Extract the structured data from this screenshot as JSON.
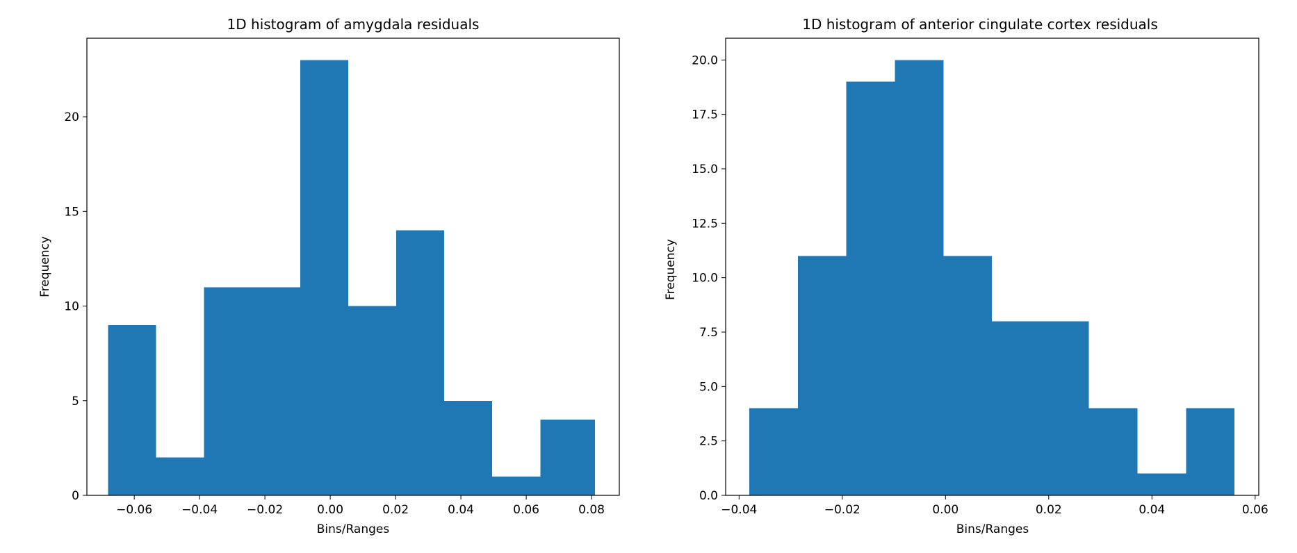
{
  "chart_data": [
    {
      "type": "bar",
      "title": "1D histogram of amygdala residuals",
      "xlabel": "Bins/Ranges",
      "ylabel": "Frequency",
      "xlim": [
        -0.0745,
        0.0885
      ],
      "ylim": [
        0,
        24.15
      ],
      "grid": false,
      "bar_color": "#1f77b4",
      "bin_edges": [
        -0.068,
        -0.0533,
        -0.0386,
        -0.0239,
        -0.0092,
        0.0055,
        0.0202,
        0.0349,
        0.0496,
        0.0643,
        0.081
      ],
      "values": [
        9,
        2,
        11,
        11,
        23,
        10,
        14,
        5,
        1,
        4
      ],
      "xticks": [
        -0.06,
        -0.04,
        -0.02,
        0.0,
        0.02,
        0.04,
        0.06,
        0.08
      ],
      "xtick_labels": [
        "−0.06",
        "−0.04",
        "−0.02",
        "0.00",
        "0.02",
        "0.04",
        "0.06",
        "0.08"
      ],
      "yticks": [
        0,
        5,
        10,
        15,
        20
      ],
      "ytick_labels": [
        "0",
        "5",
        "10",
        "15",
        "20"
      ]
    },
    {
      "type": "bar",
      "title": "1D histogram of anterior cingulate cortex residuals",
      "xlabel": "Bins/Ranges",
      "ylabel": "Frequency",
      "xlim": [
        -0.0426,
        0.0607
      ],
      "ylim": [
        0,
        21.0
      ],
      "grid": false,
      "bar_color": "#1f77b4",
      "bin_edges": [
        -0.038,
        -0.0286,
        -0.0192,
        -0.0098,
        -0.0004,
        0.009,
        0.0184,
        0.0278,
        0.0372,
        0.0466,
        0.056
      ],
      "values": [
        4,
        11,
        19,
        20,
        11,
        8,
        8,
        4,
        1,
        4
      ],
      "xticks": [
        -0.04,
        -0.02,
        0.0,
        0.02,
        0.04,
        0.06
      ],
      "xtick_labels": [
        "−0.04",
        "−0.02",
        "0.00",
        "0.02",
        "0.04",
        "0.06"
      ],
      "yticks": [
        0,
        2.5,
        5,
        7.5,
        10,
        12.5,
        15,
        17.5,
        20
      ],
      "ytick_labels": [
        "0.0",
        "2.5",
        "5.0",
        "7.5",
        "10.0",
        "12.5",
        "15.0",
        "17.5",
        "20.0"
      ]
    }
  ]
}
